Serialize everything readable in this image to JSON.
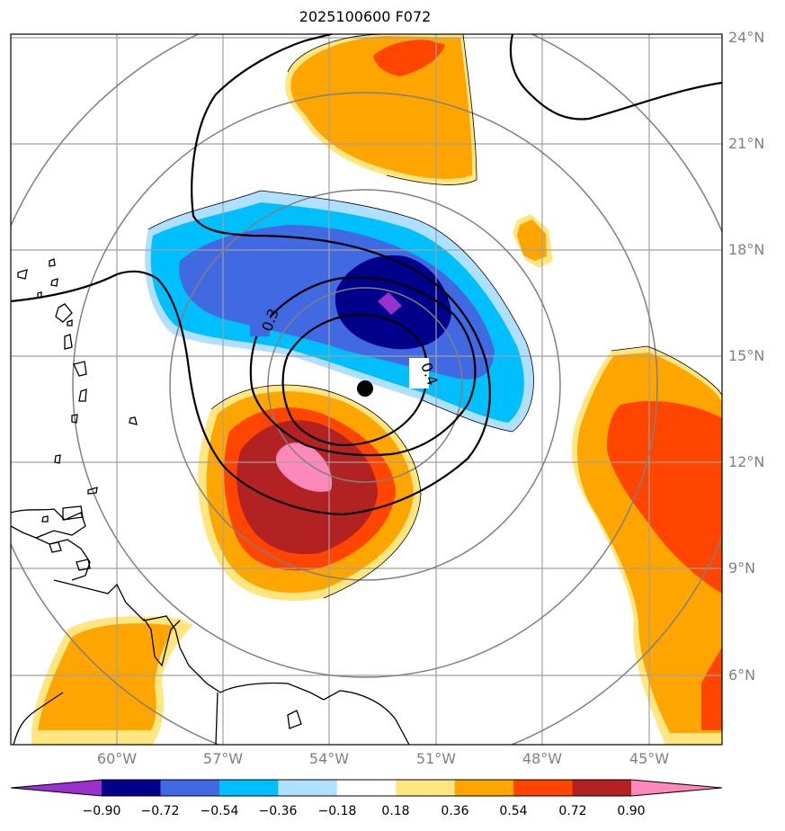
{
  "title": "2025100600 F072",
  "map": {
    "lat_labels": [
      "24°N",
      "21°N",
      "18°N",
      "15°N",
      "12°N",
      "9°N",
      "6°N"
    ],
    "lon_labels": [
      "60°W",
      "57°W",
      "54°W",
      "51°W",
      "48°W",
      "45°W"
    ],
    "contour_labels": [
      "0.3",
      "0.4"
    ],
    "storm_center": {
      "lat": 14.1,
      "lon": -52.8
    },
    "colors": {
      "coast": "#000000",
      "grid": "#a0a0a0",
      "range_rings": "#808080",
      "contour": "#000000"
    }
  },
  "colorbar": {
    "ticks": [
      "−0.90",
      "−0.72",
      "−0.54",
      "−0.36",
      "−0.18",
      "0.18",
      "0.36",
      "0.54",
      "0.72",
      "0.90"
    ],
    "colors": [
      "#9932cc",
      "#00008b",
      "#4169e1",
      "#00bfff",
      "#b0e0ff",
      "#ffffff",
      "#ffe680",
      "#ffa500",
      "#ff4500",
      "#b22222",
      "#ff88bb"
    ]
  }
}
